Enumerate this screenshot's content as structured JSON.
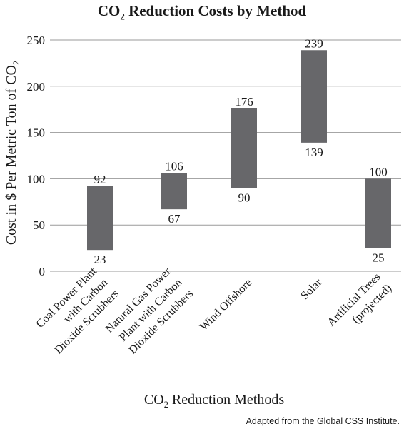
{
  "chart_data": {
    "type": "bar",
    "subtype": "floating-range",
    "title_parts": [
      "CO",
      "2",
      " Reduction Costs by Method"
    ],
    "xlabel_parts": [
      "CO",
      "2",
      " Reduction Methods"
    ],
    "ylabel_parts": [
      "Cost in $ Per Metric Ton of CO",
      "2"
    ],
    "ylim": [
      0,
      250
    ],
    "yticks": [
      "0",
      "50",
      "100",
      "150",
      "200",
      "250"
    ],
    "grid": true,
    "categories": [
      [
        "Coal Power Plant",
        "with Carbon",
        "Dioxide Scrubbers"
      ],
      [
        "Natural Gas Power",
        "Plant with Carbon",
        "Dioxide Scrubbers"
      ],
      [
        "Wind Offshore"
      ],
      [
        "Solar"
      ],
      [
        "Artificial Trees",
        "(projected)"
      ]
    ],
    "low": [
      23,
      67,
      90,
      139,
      25
    ],
    "high": [
      92,
      106,
      176,
      239,
      100
    ],
    "source": "Adapted from the Global CSS Institute.",
    "bar_color": "#67676a"
  }
}
